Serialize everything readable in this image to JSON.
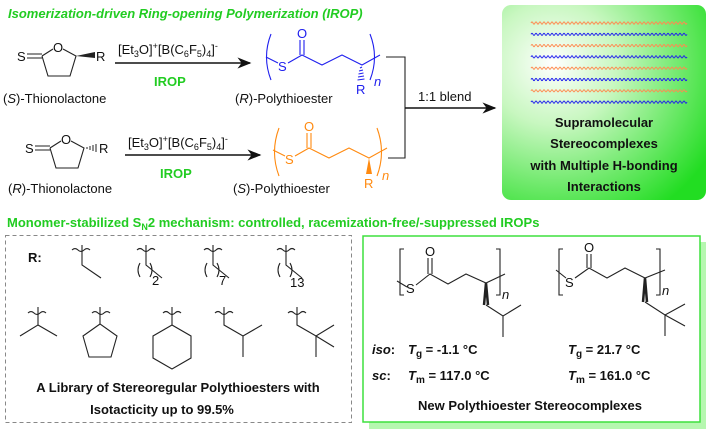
{
  "title": "Isomerization-driven Ring-opening Polymerization (IROP)",
  "reaction_top": {
    "monomer_label": {
      "pre": "(",
      "config": "S",
      "post": ")-Thionolactone"
    },
    "catalyst": {
      "a": "[Et",
      "a_sub": "3",
      "b": "O]",
      "b_sup": "+",
      "c": "[B(C",
      "c_sub": "6",
      "d": "F",
      "d_sub": "5",
      "e": ")",
      "e_sub": "4",
      "f": "]",
      "f_sup": "-"
    },
    "method": "IROP",
    "product_label": {
      "pre": "(",
      "config": "R",
      "post": ")-Polythioester"
    },
    "atoms": {
      "S": "S",
      "O": "O",
      "R": "R",
      "n": "n"
    },
    "color": "#2020ee"
  },
  "reaction_bottom": {
    "monomer_label": {
      "pre": "(",
      "config": "R",
      "post": ")-Thionolactone"
    },
    "method": "IROP",
    "product_label": {
      "pre": "(",
      "config": "S",
      "post": ")-Polythioester"
    },
    "color": "#ff8a10"
  },
  "blend_label": "1:1 blend",
  "result_box": {
    "lines": [
      "Supramolecular",
      "Stereocomplexes",
      "with Multiple H-bonding",
      "Interactions"
    ],
    "wave_colors": [
      "#ff8a50",
      "#2020ee"
    ]
  },
  "mechanism_line": {
    "a": "Monomer-stabilized S",
    "sub": "N",
    "b": "2 mechanism: controlled, racemization-free/-suppressed IROPs"
  },
  "library_box": {
    "r_label": "R:",
    "subscripts": [
      "2",
      "7",
      "13"
    ],
    "caption": [
      "A Library of Stereoregular Polythioesters with",
      "Isotacticity up to 99.5%"
    ]
  },
  "stereocomplex_box": {
    "iso_label": "iso",
    "sc_label": "sc",
    "colon": ":",
    "left": {
      "tg_label": "T",
      "tg_sub": "g",
      "tg_value": " = -1.1 °C",
      "tm_label": "T",
      "tm_sub": "m",
      "tm_value": " = 117.0 °C"
    },
    "right": {
      "tg_label": "T",
      "tg_sub": "g",
      "tg_value": " = 21.7 °C",
      "tm_label": "T",
      "tm_sub": "m",
      "tm_value": " = 161.0 °C"
    },
    "caption": "New Polythioester Stereocomplexes"
  }
}
